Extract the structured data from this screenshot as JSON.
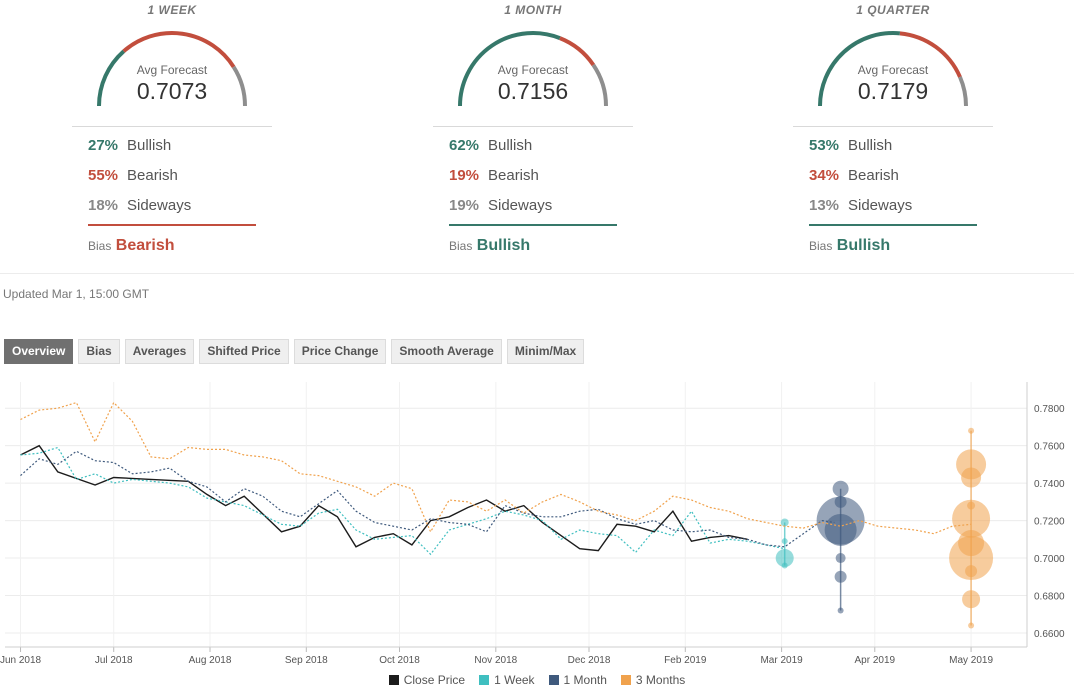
{
  "colors": {
    "bullish": "#36786a",
    "bearish": "#c24e3d",
    "sideways": "#8e8e8e",
    "close": "#1c1c1c",
    "week": "#3fbfc0",
    "month": "#3f5a7d",
    "quarter": "#f0a24d"
  },
  "gauges": [
    {
      "period": "1 WEEK",
      "label": "Avg Forecast",
      "value": "0.7073",
      "bullish_pct": "27%",
      "bullish_label": "Bullish",
      "bearish_pct": "55%",
      "bearish_label": "Bearish",
      "sideways_pct": "18%",
      "sideways_label": "Sideways",
      "bias_word": "Bias",
      "bias": "Bearish",
      "bullish": 27,
      "bearish": 55,
      "sideways": 18
    },
    {
      "period": "1 MONTH",
      "label": "Avg Forecast",
      "value": "0.7156",
      "bullish_pct": "62%",
      "bullish_label": "Bullish",
      "bearish_pct": "19%",
      "bearish_label": "Bearish",
      "sideways_pct": "19%",
      "sideways_label": "Sideways",
      "bias_word": "Bias",
      "bias": "Bullish",
      "bullish": 62,
      "bearish": 19,
      "sideways": 19
    },
    {
      "period": "1 QUARTER",
      "label": "Avg Forecast",
      "value": "0.7179",
      "bullish_pct": "53%",
      "bullish_label": "Bullish",
      "bearish_pct": "34%",
      "bearish_label": "Bearish",
      "sideways_pct": "13%",
      "sideways_label": "Sideways",
      "bias_word": "Bias",
      "bias": "Bullish",
      "bullish": 53,
      "bearish": 34,
      "sideways": 13
    }
  ],
  "updated": "Updated Mar 1, 15:00 GMT",
  "tabs": [
    "Overview",
    "Bias",
    "Averages",
    "Shifted Price",
    "Price Change",
    "Smooth Average",
    "Minim/Max"
  ],
  "active_tab": 0,
  "chart_data": {
    "type": "line",
    "x_ticks": [
      {
        "label": "Jun 2018",
        "x": 0
      },
      {
        "label": "Jul 2018",
        "x": 30
      },
      {
        "label": "Aug 2018",
        "x": 61
      },
      {
        "label": "Sep 2018",
        "x": 92
      },
      {
        "label": "Oct 2018",
        "x": 122
      },
      {
        "label": "Nov 2018",
        "x": 153
      },
      {
        "label": "Dec 2018",
        "x": 183
      },
      {
        "label": "Feb 2019",
        "x": 214
      },
      {
        "label": "Mar 2019",
        "x": 245
      },
      {
        "label": "Apr 2019",
        "x": 275
      },
      {
        "label": "May 2019",
        "x": 306
      }
    ],
    "xlim": [
      -5,
      324
    ],
    "ylim": [
      0.6525,
      0.794
    ],
    "y_ticks": [
      "0.6600",
      "0.6800",
      "0.7000",
      "0.7200",
      "0.7400",
      "0.7600",
      "0.7800"
    ],
    "y_tick_values": [
      0.66,
      0.68,
      0.7,
      0.72,
      0.74,
      0.76,
      0.78
    ],
    "series": [
      {
        "name": "Close Price",
        "key": "close",
        "dash": false,
        "points": [
          [
            0,
            0.755
          ],
          [
            6,
            0.76
          ],
          [
            12,
            0.746
          ],
          [
            24,
            0.739
          ],
          [
            30,
            0.743
          ],
          [
            42,
            0.742
          ],
          [
            54,
            0.741
          ],
          [
            60,
            0.734
          ],
          [
            66,
            0.728
          ],
          [
            72,
            0.733
          ],
          [
            84,
            0.714
          ],
          [
            90,
            0.717
          ],
          [
            96,
            0.728
          ],
          [
            102,
            0.722
          ],
          [
            108,
            0.706
          ],
          [
            114,
            0.711
          ],
          [
            120,
            0.713
          ],
          [
            126,
            0.707
          ],
          [
            132,
            0.72
          ],
          [
            138,
            0.722
          ],
          [
            144,
            0.727
          ],
          [
            150,
            0.731
          ],
          [
            156,
            0.725
          ],
          [
            162,
            0.728
          ],
          [
            168,
            0.719
          ],
          [
            174,
            0.712
          ],
          [
            180,
            0.705
          ],
          [
            186,
            0.704
          ],
          [
            192,
            0.718
          ],
          [
            198,
            0.717
          ],
          [
            204,
            0.714
          ],
          [
            210,
            0.725
          ],
          [
            216,
            0.709
          ],
          [
            222,
            0.711
          ],
          [
            228,
            0.712
          ],
          [
            234,
            0.71
          ]
        ]
      },
      {
        "name": "1 Week",
        "key": "week",
        "dash": true,
        "points": [
          [
            0,
            0.755
          ],
          [
            6,
            0.756
          ],
          [
            12,
            0.759
          ],
          [
            18,
            0.742
          ],
          [
            24,
            0.745
          ],
          [
            30,
            0.74
          ],
          [
            36,
            0.742
          ],
          [
            48,
            0.74
          ],
          [
            54,
            0.738
          ],
          [
            60,
            0.732
          ],
          [
            66,
            0.73
          ],
          [
            72,
            0.728
          ],
          [
            78,
            0.723
          ],
          [
            84,
            0.718
          ],
          [
            90,
            0.717
          ],
          [
            96,
            0.724
          ],
          [
            102,
            0.726
          ],
          [
            108,
            0.715
          ],
          [
            114,
            0.71
          ],
          [
            120,
            0.711
          ],
          [
            126,
            0.712
          ],
          [
            132,
            0.702
          ],
          [
            138,
            0.715
          ],
          [
            144,
            0.718
          ],
          [
            150,
            0.721
          ],
          [
            156,
            0.725
          ],
          [
            162,
            0.723
          ],
          [
            168,
            0.72
          ],
          [
            174,
            0.71
          ],
          [
            180,
            0.715
          ],
          [
            186,
            0.713
          ],
          [
            192,
            0.712
          ],
          [
            198,
            0.703
          ],
          [
            204,
            0.715
          ],
          [
            210,
            0.712
          ],
          [
            216,
            0.725
          ],
          [
            222,
            0.708
          ],
          [
            228,
            0.71
          ],
          [
            234,
            0.709
          ],
          [
            240,
            0.707
          ],
          [
            246,
            0.705
          ]
        ]
      },
      {
        "name": "1 Month",
        "key": "month",
        "dash": true,
        "points": [
          [
            0,
            0.744
          ],
          [
            6,
            0.753
          ],
          [
            12,
            0.75
          ],
          [
            18,
            0.757
          ],
          [
            24,
            0.752
          ],
          [
            30,
            0.751
          ],
          [
            36,
            0.745
          ],
          [
            42,
            0.746
          ],
          [
            48,
            0.748
          ],
          [
            54,
            0.741
          ],
          [
            60,
            0.738
          ],
          [
            66,
            0.73
          ],
          [
            72,
            0.737
          ],
          [
            78,
            0.733
          ],
          [
            84,
            0.725
          ],
          [
            90,
            0.722
          ],
          [
            96,
            0.729
          ],
          [
            102,
            0.736
          ],
          [
            108,
            0.725
          ],
          [
            114,
            0.719
          ],
          [
            120,
            0.717
          ],
          [
            126,
            0.715
          ],
          [
            132,
            0.721
          ],
          [
            138,
            0.719
          ],
          [
            144,
            0.718
          ],
          [
            150,
            0.714
          ],
          [
            156,
            0.728
          ],
          [
            162,
            0.724
          ],
          [
            168,
            0.722
          ],
          [
            174,
            0.722
          ],
          [
            180,
            0.725
          ],
          [
            186,
            0.726
          ],
          [
            192,
            0.721
          ],
          [
            198,
            0.718
          ],
          [
            204,
            0.72
          ],
          [
            210,
            0.715
          ],
          [
            216,
            0.714
          ],
          [
            222,
            0.715
          ],
          [
            228,
            0.711
          ],
          [
            234,
            0.71
          ],
          [
            240,
            0.707
          ],
          [
            246,
            0.706
          ],
          [
            252,
            0.713
          ],
          [
            258,
            0.72
          ],
          [
            262,
            0.719
          ]
        ]
      },
      {
        "name": "3 Months",
        "key": "quarter",
        "dash": true,
        "points": [
          [
            0,
            0.774
          ],
          [
            6,
            0.779
          ],
          [
            12,
            0.78
          ],
          [
            18,
            0.783
          ],
          [
            24,
            0.762
          ],
          [
            30,
            0.783
          ],
          [
            36,
            0.773
          ],
          [
            42,
            0.754
          ],
          [
            48,
            0.753
          ],
          [
            54,
            0.759
          ],
          [
            60,
            0.758
          ],
          [
            66,
            0.758
          ],
          [
            72,
            0.755
          ],
          [
            78,
            0.754
          ],
          [
            84,
            0.752
          ],
          [
            90,
            0.745
          ],
          [
            96,
            0.744
          ],
          [
            102,
            0.741
          ],
          [
            108,
            0.738
          ],
          [
            114,
            0.733
          ],
          [
            120,
            0.74
          ],
          [
            126,
            0.737
          ],
          [
            132,
            0.714
          ],
          [
            138,
            0.731
          ],
          [
            144,
            0.73
          ],
          [
            150,
            0.725
          ],
          [
            156,
            0.731
          ],
          [
            162,
            0.724
          ],
          [
            168,
            0.73
          ],
          [
            174,
            0.734
          ],
          [
            180,
            0.73
          ],
          [
            186,
            0.725
          ],
          [
            192,
            0.723
          ],
          [
            198,
            0.72
          ],
          [
            204,
            0.725
          ],
          [
            210,
            0.733
          ],
          [
            216,
            0.731
          ],
          [
            222,
            0.727
          ],
          [
            228,
            0.725
          ],
          [
            234,
            0.721
          ],
          [
            240,
            0.719
          ],
          [
            246,
            0.717
          ],
          [
            252,
            0.716
          ],
          [
            258,
            0.719
          ],
          [
            264,
            0.717
          ],
          [
            270,
            0.72
          ],
          [
            276,
            0.717
          ],
          [
            282,
            0.716
          ],
          [
            288,
            0.715
          ],
          [
            294,
            0.713
          ],
          [
            300,
            0.717
          ],
          [
            306,
            0.718
          ]
        ]
      }
    ],
    "forecast_bubbles": [
      {
        "key": "week",
        "x": 246,
        "bubbles": [
          [
            0.719,
            4
          ],
          [
            0.709,
            3
          ],
          [
            0.7,
            9
          ],
          [
            0.696,
            3
          ]
        ],
        "range": [
          0.696,
          0.719
        ]
      },
      {
        "key": "month",
        "x": 264,
        "bubbles": [
          [
            0.737,
            8
          ],
          [
            0.73,
            6
          ],
          [
            0.72,
            24
          ],
          [
            0.715,
            16
          ],
          [
            0.7,
            5
          ],
          [
            0.69,
            6
          ],
          [
            0.672,
            3
          ]
        ],
        "range": [
          0.672,
          0.737
        ]
      },
      {
        "key": "quarter",
        "x": 306,
        "bubbles": [
          [
            0.768,
            3
          ],
          [
            0.75,
            15
          ],
          [
            0.743,
            10
          ],
          [
            0.728,
            4
          ],
          [
            0.721,
            19
          ],
          [
            0.708,
            13
          ],
          [
            0.7,
            22
          ],
          [
            0.693,
            6
          ],
          [
            0.678,
            9
          ],
          [
            0.664,
            3
          ]
        ],
        "range": [
          0.664,
          0.768
        ]
      }
    ]
  },
  "legend": [
    {
      "key": "close",
      "label": "Close Price"
    },
    {
      "key": "week",
      "label": "1 Week"
    },
    {
      "key": "month",
      "label": "1 Month"
    },
    {
      "key": "quarter",
      "label": "3 Months"
    }
  ]
}
